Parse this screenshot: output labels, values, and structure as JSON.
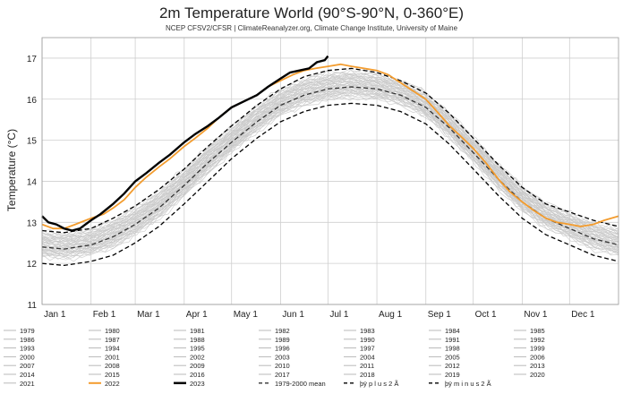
{
  "chart_data": {
    "type": "line",
    "title": "2m Temperature World (90°S-90°N, 0-360°E)",
    "subtitle": "NCEP CFSV2/CFSR | ClimateReanalyzer.org, Climate Change Institute, University of Maine",
    "xlabel": "",
    "ylabel": "Temperature (°C)",
    "ylim": [
      11,
      17.5
    ],
    "xlim": [
      1,
      366
    ],
    "yticks": [
      11,
      12,
      13,
      14,
      15,
      16,
      17
    ],
    "xticks": [
      {
        "label": "Jan 1",
        "day": 1
      },
      {
        "label": "Feb 1",
        "day": 32
      },
      {
        "label": "Mar 1",
        "day": 60
      },
      {
        "label": "Apr 1",
        "day": 91
      },
      {
        "label": "May 1",
        "day": 121
      },
      {
        "label": "Jun 1",
        "day": 152
      },
      {
        "label": "Jul 1",
        "day": 182
      },
      {
        "label": "Aug 1",
        "day": 213
      },
      {
        "label": "Sep 1",
        "day": 244
      },
      {
        "label": "Oct 1",
        "day": 274
      },
      {
        "label": "Nov 1",
        "day": 305
      },
      {
        "label": "Dec 1",
        "day": 335
      }
    ],
    "grid": true,
    "legend_position": "bottom",
    "background_years": [
      "1979",
      "1980",
      "1981",
      "1982",
      "1983",
      "1984",
      "1985",
      "1986",
      "1987",
      "1988",
      "1989",
      "1990",
      "1991",
      "1992",
      "1993",
      "1994",
      "1995",
      "1996",
      "1997",
      "1998",
      "1999",
      "2000",
      "2001",
      "2002",
      "2003",
      "2004",
      "2005",
      "2006",
      "2007",
      "2008",
      "2009",
      "2010",
      "2011",
      "2012",
      "2013",
      "2014",
      "2015",
      "2016",
      "2017",
      "2018",
      "2019",
      "2020",
      "2021"
    ],
    "series": [
      {
        "name": "1979-2000 mean",
        "style": "dashed",
        "color": "#333333",
        "role": "mean",
        "x": [
          1,
          15,
          32,
          46,
          60,
          75,
          91,
          106,
          121,
          137,
          152,
          167,
          182,
          197,
          213,
          228,
          244,
          259,
          274,
          290,
          305,
          320,
          335,
          350,
          366
        ],
        "values": [
          12.4,
          12.35,
          12.45,
          12.65,
          12.95,
          13.35,
          13.9,
          14.45,
          14.95,
          15.45,
          15.85,
          16.1,
          16.25,
          16.3,
          16.25,
          16.1,
          15.8,
          15.3,
          14.7,
          14.05,
          13.5,
          13.1,
          12.85,
          12.6,
          12.45
        ]
      },
      {
        "name": "plus 2 sigma",
        "label": "þÿ p l u s   2 Ã",
        "style": "dashed",
        "color": "#000000",
        "role": "upper",
        "x": [
          1,
          15,
          32,
          46,
          60,
          75,
          91,
          106,
          121,
          137,
          152,
          167,
          182,
          197,
          213,
          228,
          244,
          259,
          274,
          290,
          305,
          320,
          335,
          350,
          366
        ],
        "values": [
          12.8,
          12.75,
          12.85,
          13.1,
          13.4,
          13.8,
          14.3,
          14.85,
          15.35,
          15.85,
          16.25,
          16.55,
          16.7,
          16.75,
          16.65,
          16.45,
          16.15,
          15.65,
          15.05,
          14.4,
          13.85,
          13.45,
          13.25,
          13.05,
          12.9
        ]
      },
      {
        "name": "minus 2 sigma",
        "label": "þÿ m i n u s   2 Ã",
        "style": "dashed",
        "color": "#000000",
        "role": "lower",
        "x": [
          1,
          15,
          32,
          46,
          60,
          75,
          91,
          106,
          121,
          137,
          152,
          167,
          182,
          197,
          213,
          228,
          244,
          259,
          274,
          290,
          305,
          320,
          335,
          350,
          366
        ],
        "values": [
          12.0,
          11.95,
          12.05,
          12.2,
          12.5,
          12.9,
          13.45,
          14.0,
          14.55,
          15.05,
          15.45,
          15.7,
          15.85,
          15.9,
          15.85,
          15.7,
          15.4,
          14.9,
          14.3,
          13.65,
          13.1,
          12.7,
          12.45,
          12.2,
          12.05
        ]
      },
      {
        "name": "2022",
        "color": "#f39c2e",
        "role": "highlight",
        "x": [
          1,
          8,
          15,
          22,
          32,
          40,
          46,
          53,
          60,
          67,
          75,
          82,
          91,
          98,
          106,
          113,
          121,
          129,
          137,
          144,
          152,
          160,
          167,
          174,
          182,
          190,
          197,
          205,
          213,
          220,
          228,
          236,
          244,
          251,
          259,
          266,
          274,
          282,
          290,
          297,
          305,
          312,
          320,
          327,
          335,
          342,
          350,
          357,
          366
        ],
        "values": [
          12.95,
          12.85,
          12.85,
          12.95,
          13.1,
          13.2,
          13.35,
          13.55,
          13.85,
          14.1,
          14.35,
          14.55,
          14.85,
          15.05,
          15.3,
          15.55,
          15.8,
          15.95,
          16.1,
          16.3,
          16.45,
          16.6,
          16.7,
          16.75,
          16.8,
          16.85,
          16.8,
          16.75,
          16.7,
          16.6,
          16.4,
          16.2,
          16.0,
          15.7,
          15.35,
          15.1,
          14.8,
          14.45,
          14.05,
          13.75,
          13.5,
          13.3,
          13.1,
          13.0,
          12.95,
          12.9,
          12.95,
          13.05,
          13.15
        ]
      },
      {
        "name": "2023",
        "color": "#000000",
        "role": "current",
        "x": [
          1,
          5,
          10,
          15,
          20,
          25,
          32,
          38,
          46,
          53,
          60,
          67,
          75,
          82,
          91,
          98,
          106,
          113,
          121,
          129,
          137,
          144,
          152,
          158,
          164,
          170,
          175,
          180,
          182
        ],
        "values": [
          13.15,
          13.0,
          12.95,
          12.85,
          12.8,
          12.85,
          13.05,
          13.2,
          13.45,
          13.7,
          14.0,
          14.2,
          14.45,
          14.65,
          14.95,
          15.15,
          15.35,
          15.55,
          15.8,
          15.95,
          16.1,
          16.3,
          16.5,
          16.65,
          16.7,
          16.75,
          16.9,
          16.95,
          17.05
        ]
      }
    ],
    "legend": {
      "rows": [
        [
          "1979",
          "1980",
          "1981",
          "1982",
          "1983",
          "1984",
          "1985"
        ],
        [
          "1986",
          "1987",
          "1988",
          "1989",
          "1990",
          "1991",
          "1992"
        ],
        [
          "1993",
          "1994",
          "1995",
          "1996",
          "1997",
          "1998",
          "1999"
        ],
        [
          "2000",
          "2001",
          "2002",
          "2003",
          "2004",
          "2005",
          "2006"
        ],
        [
          "2007",
          "2008",
          "2009",
          "2010",
          "2011",
          "2012",
          "2013"
        ],
        [
          "2014",
          "2015",
          "2016",
          "2017",
          "2018",
          "2019",
          "2020"
        ],
        [
          "2021",
          "2022",
          "2023",
          "1979-2000 mean",
          "þÿ p l u s   2 Ã",
          "þÿ m i n u s   2 Ã",
          ""
        ]
      ],
      "styles": {
        "2022": {
          "color": "#f39c2e",
          "width": 2,
          "dash": ""
        },
        "2023": {
          "color": "#000000",
          "width": 2.5,
          "dash": ""
        },
        "1979-2000 mean": {
          "color": "#333333",
          "width": 1.3,
          "dash": "4,3"
        },
        "þÿ p l u s   2 Ã": {
          "color": "#000000",
          "width": 1.3,
          "dash": "4,3"
        },
        "þÿ m i n u s   2 Ã": {
          "color": "#000000",
          "width": 1.3,
          "dash": "4,3"
        },
        "default": {
          "color": "#b8b8b8",
          "width": 1,
          "dash": ""
        }
      }
    },
    "colors": {
      "background_years": "#c8c8c8",
      "highlight_2022": "#f39c2e",
      "current_2023": "#000000",
      "grid": "#cfcfcf"
    }
  }
}
